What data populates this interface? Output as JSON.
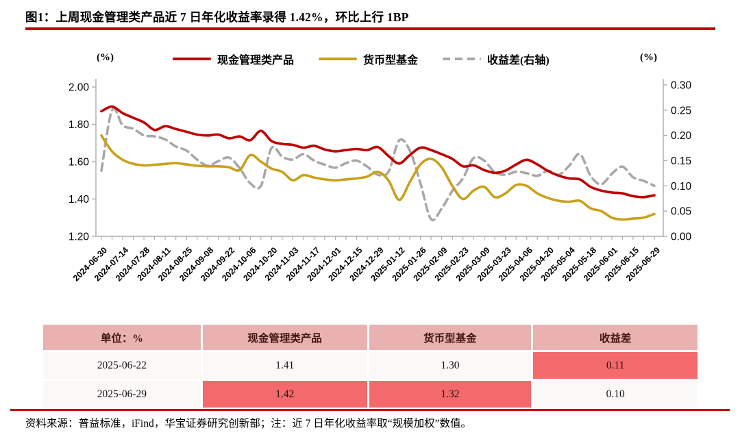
{
  "title": "图1：上周现金管理类产品近 7 日年化收益率录得 1.42%，环比上行 1BP",
  "legend": {
    "left_unit": "(%)",
    "right_unit": "(%)"
  },
  "accent_color": "#c00000",
  "chart_data": {
    "type": "line",
    "title": "上周现金管理类产品近7日年化收益率录得1.42%，环比上行1BP",
    "categories": [
      "2024-06-30",
      "2024-07-07",
      "2024-07-14",
      "2024-07-21",
      "2024-07-28",
      "2024-08-04",
      "2024-08-11",
      "2024-08-18",
      "2024-08-25",
      "2024-09-01",
      "2024-09-08",
      "2024-09-15",
      "2024-09-22",
      "2024-09-29",
      "2024-10-06",
      "2024-10-13",
      "2024-10-20",
      "2024-10-27",
      "2024-11-03",
      "2024-11-10",
      "2024-11-17",
      "2024-11-24",
      "2024-12-01",
      "2024-12-08",
      "2024-12-15",
      "2024-12-22",
      "2024-12-29",
      "2025-01-05",
      "2025-01-12",
      "2025-01-19",
      "2025-01-26",
      "2025-02-02",
      "2025-02-09",
      "2025-02-16",
      "2025-02-23",
      "2025-03-02",
      "2025-03-09",
      "2025-03-16",
      "2025-03-23",
      "2025-03-30",
      "2025-04-06",
      "2025-04-13",
      "2025-04-20",
      "2025-04-27",
      "2025-05-04",
      "2025-05-11",
      "2025-05-18",
      "2025-05-25",
      "2025-06-01",
      "2025-06-08",
      "2025-06-15",
      "2025-06-22",
      "2025-06-29"
    ],
    "label_every": 2,
    "left_axis": {
      "unit": "(%)",
      "min": 1.2,
      "max": 2.0,
      "ticks": [
        "2.00",
        "1.80",
        "1.60",
        "1.40",
        "1.20"
      ],
      "grid": false
    },
    "right_axis": {
      "unit": "(%)",
      "min": 0.0,
      "max": 0.3,
      "ticks": [
        "0.30",
        "0.25",
        "0.20",
        "0.15",
        "0.10",
        "0.05",
        "0.00"
      ]
    },
    "legend_position": "top",
    "series": [
      {
        "name": "收益差(右轴)",
        "color": "#a8a8a8",
        "dash": true,
        "axis": "right",
        "values": [
          0.13,
          0.25,
          0.22,
          0.213,
          0.2,
          0.198,
          0.192,
          0.178,
          0.17,
          0.152,
          0.14,
          0.149,
          0.156,
          0.135,
          0.105,
          0.1,
          0.175,
          0.158,
          0.152,
          0.163,
          0.15,
          0.142,
          0.136,
          0.145,
          0.15,
          0.138,
          0.122,
          0.128,
          0.19,
          0.17,
          0.105,
          0.034,
          0.055,
          0.09,
          0.115,
          0.155,
          0.15,
          0.127,
          0.122,
          0.128,
          0.125,
          0.12,
          0.13,
          0.122,
          0.14,
          0.163,
          0.12,
          0.103,
          0.124,
          0.138,
          0.117,
          0.11,
          0.1
        ]
      },
      {
        "name": "货币型基金",
        "color": "#c8a11b",
        "dash": false,
        "axis": "left",
        "values": [
          1.74,
          1.655,
          1.61,
          1.588,
          1.58,
          1.583,
          1.588,
          1.592,
          1.585,
          1.578,
          1.575,
          1.575,
          1.57,
          1.555,
          1.635,
          1.6,
          1.563,
          1.545,
          1.5,
          1.528,
          1.515,
          1.505,
          1.5,
          1.505,
          1.51,
          1.52,
          1.545,
          1.5,
          1.395,
          1.49,
          1.585,
          1.615,
          1.57,
          1.47,
          1.4,
          1.445,
          1.465,
          1.41,
          1.43,
          1.475,
          1.47,
          1.43,
          1.405,
          1.39,
          1.385,
          1.39,
          1.35,
          1.335,
          1.3,
          1.29,
          1.295,
          1.3,
          1.32
        ]
      },
      {
        "name": "现金管理类产品",
        "color": "#c00000",
        "dash": false,
        "axis": "left",
        "values": [
          1.87,
          1.895,
          1.86,
          1.835,
          1.81,
          1.77,
          1.79,
          1.775,
          1.76,
          1.745,
          1.74,
          1.745,
          1.725,
          1.735,
          1.715,
          1.765,
          1.71,
          1.695,
          1.69,
          1.675,
          1.685,
          1.665,
          1.655,
          1.662,
          1.668,
          1.662,
          1.678,
          1.63,
          1.59,
          1.635,
          1.675,
          1.662,
          1.64,
          1.615,
          1.575,
          1.58,
          1.555,
          1.54,
          1.552,
          1.585,
          1.61,
          1.585,
          1.55,
          1.525,
          1.51,
          1.505,
          1.465,
          1.445,
          1.435,
          1.43,
          1.415,
          1.41,
          1.42
        ]
      }
    ],
    "legend_order": [
      "现金管理类产品",
      "货币型基金",
      "收益差(右轴)"
    ]
  },
  "table": {
    "headers": [
      "单位：%",
      "现金管理类产品",
      "货币型基金",
      "收益差"
    ],
    "rows": [
      {
        "cells": [
          "2025-06-22",
          "1.41",
          "1.30",
          "0.11"
        ],
        "highlight": [
          false,
          false,
          false,
          true
        ]
      },
      {
        "cells": [
          "2025-06-29",
          "1.42",
          "1.32",
          "0.10"
        ],
        "highlight": [
          false,
          true,
          true,
          false
        ]
      }
    ],
    "colors": {
      "header_bg": "#e9b2b1",
      "highlight_bg": "#f4696b"
    }
  },
  "footer": {
    "text": "资料来源：普益标准，iFind，华宝证券研究创新部；注：近 7 日年化收益率取“规模加权”数值。"
  }
}
